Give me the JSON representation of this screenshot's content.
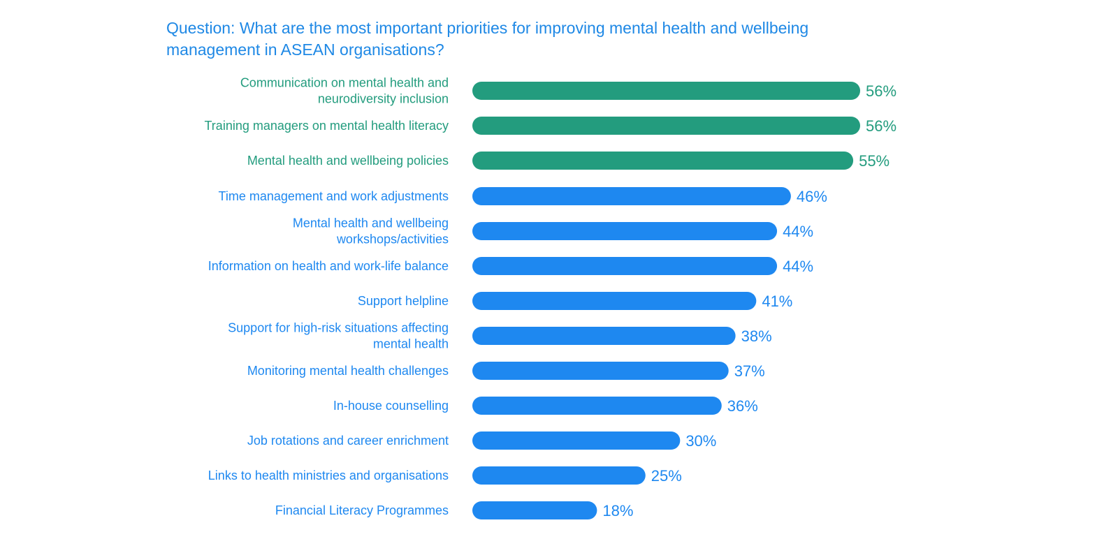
{
  "title": "Question: What are the most important priorities for improving mental health and wellbeing management in ASEAN organisations?",
  "colors": {
    "highlight": "#239c7e",
    "default": "#1e88f0"
  },
  "chart_data": {
    "type": "bar",
    "orientation": "horizontal",
    "unit": "%",
    "categories": [
      [
        "Communication on mental health and",
        "neurodiversity inclusion"
      ],
      [
        "Training managers on mental health literacy"
      ],
      [
        "Mental health and wellbeing policies"
      ],
      [
        "Time management and work adjustments"
      ],
      [
        "Mental health and wellbeing",
        "workshops/activities"
      ],
      [
        "Information on health and work-life balance"
      ],
      [
        "Support helpline"
      ],
      [
        "Support for high-risk situations affecting",
        "mental health"
      ],
      [
        "Monitoring mental health challenges"
      ],
      [
        "In-house counselling"
      ],
      [
        "Job rotations and career enrichment"
      ],
      [
        "Links to health ministries and organisations"
      ],
      [
        "Financial Literacy Programmes"
      ]
    ],
    "values": [
      56,
      56,
      55,
      46,
      44,
      44,
      41,
      38,
      37,
      36,
      30,
      25,
      18
    ],
    "labels": [
      "56%",
      "56%",
      "55%",
      "46%",
      "44%",
      "44%",
      "41%",
      "38%",
      "37%",
      "36%",
      "30%",
      "25%",
      "18%"
    ],
    "highlighted": [
      true,
      true,
      true,
      false,
      false,
      false,
      false,
      false,
      false,
      false,
      false,
      false,
      false
    ],
    "xlim": [
      0,
      56
    ],
    "grid": false
  }
}
